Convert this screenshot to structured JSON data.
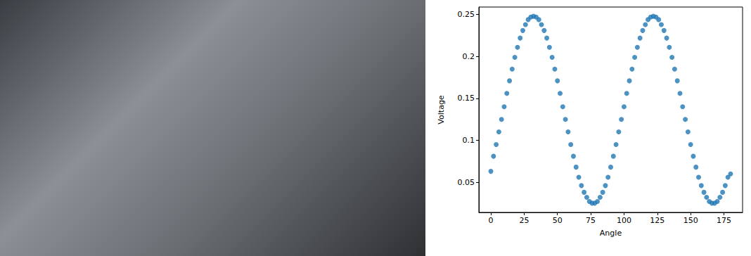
{
  "chart_data": {
    "type": "scatter",
    "x_label": "Angle",
    "y_label": "Voltage",
    "x": [
      0,
      2,
      4,
      6,
      8,
      10,
      12,
      14,
      16,
      18,
      20,
      22,
      24,
      26,
      28,
      30,
      32,
      34,
      36,
      38,
      40,
      42,
      44,
      46,
      48,
      50,
      52,
      54,
      56,
      58,
      60,
      62,
      64,
      66,
      68,
      70,
      72,
      74,
      76,
      78,
      80,
      82,
      84,
      86,
      88,
      90,
      92,
      94,
      96,
      98,
      100,
      102,
      104,
      106,
      108,
      110,
      112,
      114,
      116,
      118,
      120,
      122,
      124,
      126,
      128,
      130,
      132,
      134,
      136,
      138,
      140,
      142,
      144,
      146,
      148,
      150,
      152,
      154,
      156,
      158,
      160,
      162,
      164,
      166,
      168,
      170,
      172,
      174,
      176,
      178,
      180
    ],
    "values": [
      0.063,
      0.081,
      0.095,
      0.11,
      0.125,
      0.14,
      0.156,
      0.171,
      0.185,
      0.199,
      0.211,
      0.222,
      0.231,
      0.238,
      0.244,
      0.247,
      0.248,
      0.247,
      0.244,
      0.238,
      0.231,
      0.222,
      0.211,
      0.199,
      0.185,
      0.171,
      0.156,
      0.14,
      0.125,
      0.11,
      0.095,
      0.081,
      0.068,
      0.056,
      0.046,
      0.038,
      0.032,
      0.027,
      0.025,
      0.025,
      0.027,
      0.032,
      0.038,
      0.046,
      0.056,
      0.068,
      0.081,
      0.095,
      0.11,
      0.125,
      0.14,
      0.156,
      0.171,
      0.185,
      0.199,
      0.211,
      0.222,
      0.231,
      0.238,
      0.244,
      0.247,
      0.248,
      0.247,
      0.244,
      0.238,
      0.231,
      0.222,
      0.211,
      0.199,
      0.185,
      0.171,
      0.156,
      0.14,
      0.125,
      0.11,
      0.095,
      0.081,
      0.068,
      0.056,
      0.046,
      0.038,
      0.032,
      0.027,
      0.025,
      0.025,
      0.027,
      0.032,
      0.038,
      0.046,
      0.056,
      0.06
    ],
    "color": "#1f77b4",
    "marker": "circle",
    "xlim": [
      -9,
      189
    ],
    "ylim": [
      0.014,
      0.259
    ],
    "xticks": [
      0,
      25,
      50,
      75,
      100,
      125,
      150,
      175
    ],
    "yticks": [
      0.05,
      0.1,
      0.15,
      0.2,
      0.25
    ],
    "grid": false
  }
}
